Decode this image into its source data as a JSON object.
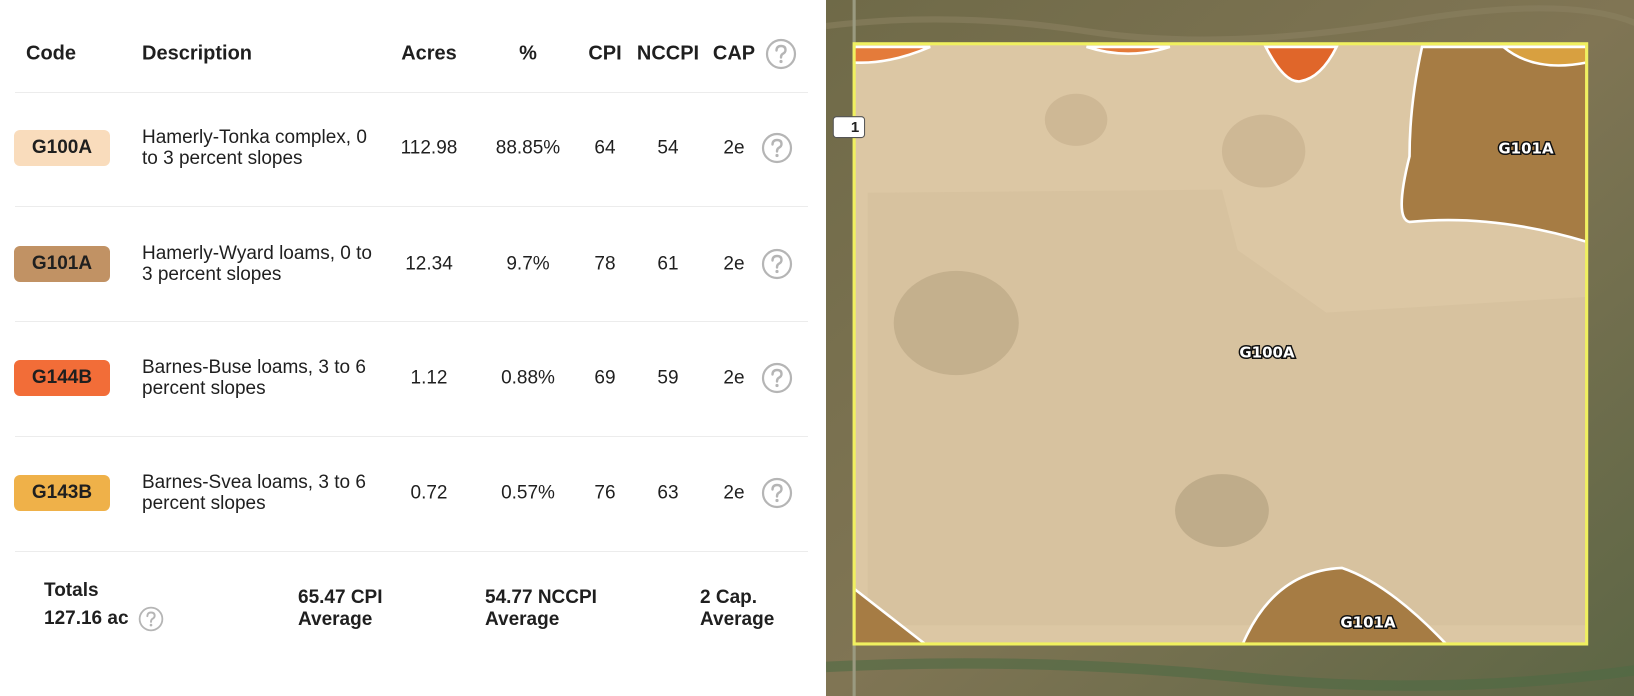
{
  "table": {
    "headers": [
      "Code",
      "Description",
      "Acres",
      "%",
      "CPI",
      "NCCPI",
      "CAP"
    ],
    "rows": [
      [
        "G100A",
        "Hamerly-Tonka complex, 0 to 3 percent slopes",
        "112.98",
        "88.85%",
        "64",
        "54",
        "2e"
      ],
      [
        "G101A",
        "Hamerly-Wyard loams, 0 to 3 percent slopes",
        "12.34",
        "9.7%",
        "78",
        "61",
        "2e"
      ],
      [
        "G144B",
        "Barnes-Buse loams, 3 to 6 percent slopes",
        "1.12",
        "0.88%",
        "69",
        "59",
        "2e"
      ],
      [
        "G143B",
        "Barnes-Svea loams, 3 to 6 percent slopes",
        "0.72",
        "0.57%",
        "76",
        "63",
        "2e"
      ]
    ]
  },
  "totals": {
    "label": "Totals",
    "acres": "127.16 ac",
    "cpi": "65.47 CPI Average",
    "nccpi": "54.77 NCCPI Average",
    "cap": "2 Cap. Average"
  },
  "map": {
    "road_badge": "1",
    "labels": [
      "G101A",
      "G100A",
      "G101A"
    ]
  }
}
